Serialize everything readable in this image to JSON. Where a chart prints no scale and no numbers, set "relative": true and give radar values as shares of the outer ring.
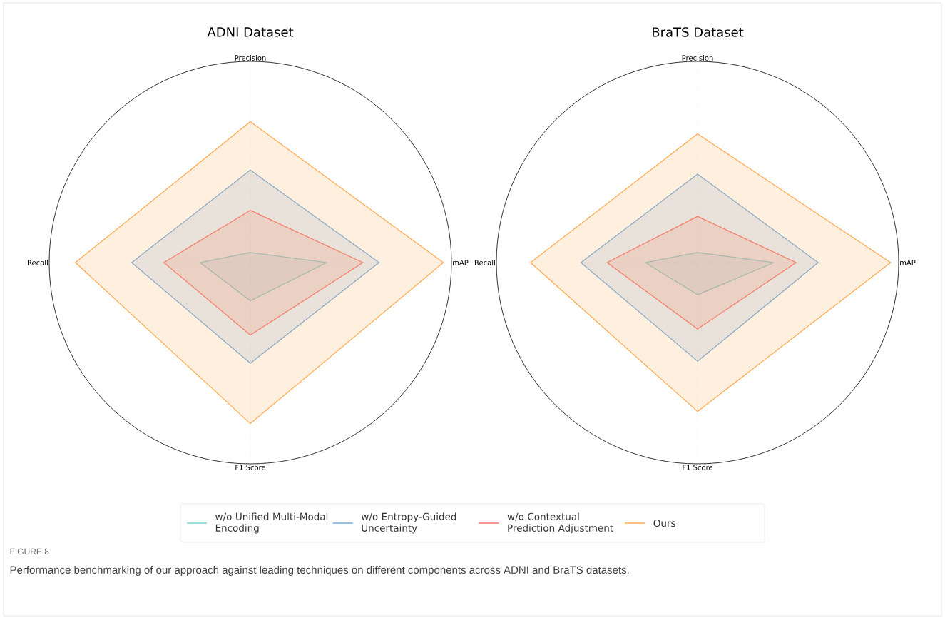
{
  "chart_data": [
    {
      "type": "radar",
      "title": "ADNI Dataset",
      "categories": [
        "Precision",
        "mAP",
        "F1 Score",
        "Recall"
      ],
      "relative": true,
      "grid": true,
      "legend": "bottom",
      "series": [
        {
          "name": "w/o Unified Multi-Modal Encoding",
          "color": "#7dd3cf",
          "values": [
            0.05,
            0.38,
            0.19,
            0.25
          ]
        },
        {
          "name": "w/o Entropy-Guided Uncertainty",
          "color": "#6fa8dc",
          "values": [
            0.46,
            0.64,
            0.5,
            0.59
          ]
        },
        {
          "name": "w/o Contextual Prediction Adjustment",
          "color": "#f4726b",
          "values": [
            0.26,
            0.56,
            0.36,
            0.43
          ]
        },
        {
          "name": "Ours",
          "color": "#ffa94d",
          "values": [
            0.7,
            0.96,
            0.8,
            0.87
          ]
        }
      ],
      "annotations": [
        "FIGURE 8",
        "Performance benchmarking of our approach against leading techniques on different components across ADNI and BraTS datasets."
      ]
    },
    {
      "type": "radar",
      "title": "BraTS Dataset",
      "categories": [
        "Precision",
        "mAP",
        "F1 Score",
        "Recall"
      ],
      "relative": true,
      "grid": true,
      "series": [
        {
          "color": "#7dd3cf",
          "values": [
            0.05,
            0.38,
            0.16,
            0.26
          ]
        },
        {
          "color": "#6fa8dc",
          "values": [
            0.44,
            0.6,
            0.49,
            0.58
          ]
        },
        {
          "color": "#f4726b",
          "values": [
            0.23,
            0.49,
            0.33,
            0.45
          ]
        },
        {
          "color": "#ffa94d",
          "values": [
            0.64,
            0.96,
            0.74,
            0.83
          ]
        }
      ]
    }
  ]
}
